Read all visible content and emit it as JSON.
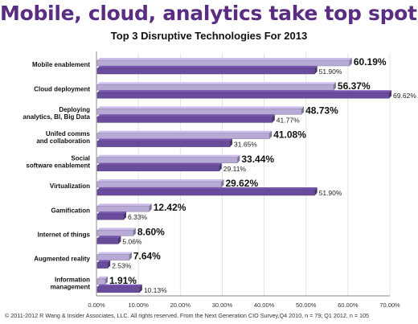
{
  "headline": "Mobile, cloud, analytics take top spots",
  "footer": "© 2011-2012 R Wang & Insider Associates, LLC.  All rights reserved.   From the Next Generation CIO Survey,Q4 2010,  n = 79; Q1 2012, n = 105",
  "colors": {
    "headline": "#5a2d82",
    "series_light": "#b7aad4",
    "series_dark": "#6a4c9c",
    "axis": "#888888",
    "grid": "#dddddd"
  },
  "chart_data": {
    "type": "bar",
    "orientation": "horizontal",
    "title": "Top 3 Disruptive Technologies For 2013",
    "categories": [
      "Mobile enablement",
      "Cloud deployment",
      "Deploying\nanalytics, BI, Big Data",
      "Unifed comms\nand collaboration",
      "Social\nsoftware enablement",
      "Virtualization",
      "Gamification",
      "Internet of things",
      "Augmented reality",
      "Information\nmanagement"
    ],
    "series": [
      {
        "values": [
          60.19,
          56.37,
          48.73,
          41.08,
          33.44,
          29.62,
          12.42,
          8.6,
          7.64,
          1.91
        ],
        "labels": [
          "60.19%",
          "56.37%",
          "48.73%",
          "41.08%",
          "33.44%",
          "29.62%",
          "12.42%",
          "8.60%",
          "7.64%",
          "1.91%"
        ]
      },
      {
        "values": [
          51.9,
          69.62,
          41.77,
          31.65,
          29.11,
          51.9,
          6.33,
          5.06,
          2.53,
          10.13
        ],
        "labels": [
          "51.90%",
          "69.62%",
          "41.77%",
          "31.65%",
          "29.11%",
          "51.90%",
          "6.33%",
          "5.06%",
          "2.53%",
          "10.13%"
        ]
      }
    ],
    "xlim": [
      0,
      70
    ],
    "xticks": [
      "0.00%",
      "10.00%",
      "20.00%",
      "30.00%",
      "40.00%",
      "50.00%",
      "60.00%",
      "70.00%"
    ],
    "xlabel": "",
    "ylabel": "",
    "grid": true,
    "legend": false
  }
}
